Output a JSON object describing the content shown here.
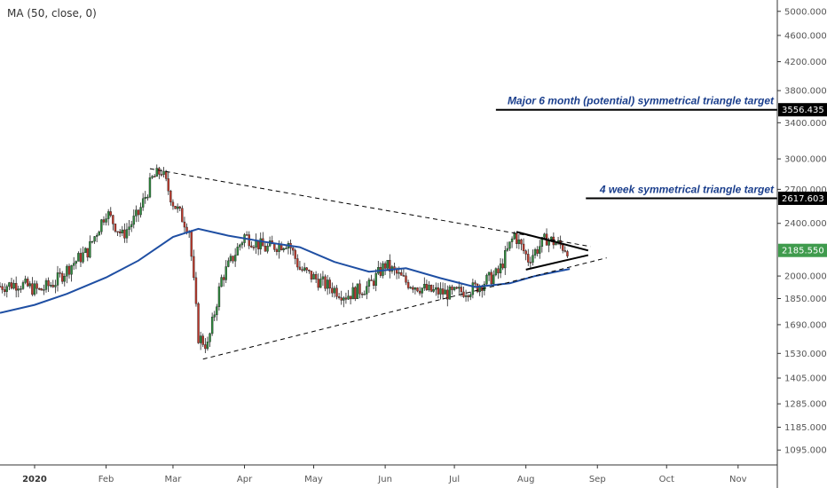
{
  "indicator_label": "MA (50, close, 0)",
  "colors": {
    "up": "#2e8b3d",
    "down": "#c0392b",
    "ma": "#1f4fa3",
    "annotation": "#1a3e8c",
    "price_badge": "#3f9b4d",
    "target_badge": "#000000"
  },
  "chart_data": {
    "type": "candlestick",
    "y_scale": "log",
    "ylim": [
      1040,
      5200
    ],
    "y_ticks": [
      "5000.000",
      "4600.000",
      "4200.000",
      "3800.000",
      "3400.000",
      "3000.000",
      "2700.000",
      "2400.000",
      "2000.000",
      "1850.000",
      "1690.000",
      "1530.000",
      "1405.000",
      "1285.000",
      "1185.000",
      "1095.000"
    ],
    "x_ticks": [
      {
        "label": "2020",
        "date": "2020-01-01",
        "bold": true
      },
      {
        "label": "Feb",
        "date": "2020-02-01"
      },
      {
        "label": "Mar",
        "date": "2020-03-01"
      },
      {
        "label": "Apr",
        "date": "2020-04-01"
      },
      {
        "label": "May",
        "date": "2020-05-01"
      },
      {
        "label": "Jun",
        "date": "2020-06-01"
      },
      {
        "label": "Jul",
        "date": "2020-07-01"
      },
      {
        "label": "Aug",
        "date": "2020-08-01"
      },
      {
        "label": "Sep",
        "date": "2020-09-01"
      },
      {
        "label": "Oct",
        "date": "2020-10-01"
      },
      {
        "label": "Nov",
        "date": "2020-11-01"
      }
    ],
    "xlim": [
      "2019-12-17",
      "2020-11-18"
    ],
    "price_close": [
      {
        "date": "2019-12-17",
        "value": 1930
      },
      {
        "date": "2019-12-25",
        "value": 1950
      },
      {
        "date": "2020-01-03",
        "value": 1900
      },
      {
        "date": "2020-01-10",
        "value": 1960
      },
      {
        "date": "2020-01-17",
        "value": 2080
      },
      {
        "date": "2020-01-24",
        "value": 2180
      },
      {
        "date": "2020-02-01",
        "value": 2500
      },
      {
        "date": "2020-02-08",
        "value": 2300
      },
      {
        "date": "2020-02-15",
        "value": 2480
      },
      {
        "date": "2020-02-21",
        "value": 2800
      },
      {
        "date": "2020-02-25",
        "value": 2880
      },
      {
        "date": "2020-03-01",
        "value": 2580
      },
      {
        "date": "2020-03-08",
        "value": 2350
      },
      {
        "date": "2020-03-12",
        "value": 1620
      },
      {
        "date": "2020-03-16",
        "value": 1570
      },
      {
        "date": "2020-03-22",
        "value": 1980
      },
      {
        "date": "2020-04-01",
        "value": 2300
      },
      {
        "date": "2020-04-10",
        "value": 2200
      },
      {
        "date": "2020-04-20",
        "value": 2250
      },
      {
        "date": "2020-04-25",
        "value": 2050
      },
      {
        "date": "2020-05-05",
        "value": 1950
      },
      {
        "date": "2020-05-15",
        "value": 1870
      },
      {
        "date": "2020-05-25",
        "value": 1930
      },
      {
        "date": "2020-06-01",
        "value": 2080
      },
      {
        "date": "2020-06-10",
        "value": 1960
      },
      {
        "date": "2020-06-20",
        "value": 1900
      },
      {
        "date": "2020-06-30",
        "value": 1880
      },
      {
        "date": "2020-07-10",
        "value": 1920
      },
      {
        "date": "2020-07-20",
        "value": 2020
      },
      {
        "date": "2020-07-27",
        "value": 2310
      },
      {
        "date": "2020-08-02",
        "value": 2120
      },
      {
        "date": "2020-08-10",
        "value": 2280
      },
      {
        "date": "2020-08-20",
        "value": 2185.55
      }
    ],
    "moving_average": [
      {
        "date": "2019-12-17",
        "value": 1760
      },
      {
        "date": "2020-01-01",
        "value": 1810
      },
      {
        "date": "2020-01-15",
        "value": 1880
      },
      {
        "date": "2020-02-01",
        "value": 1990
      },
      {
        "date": "2020-02-15",
        "value": 2110
      },
      {
        "date": "2020-03-01",
        "value": 2290
      },
      {
        "date": "2020-03-12",
        "value": 2355
      },
      {
        "date": "2020-03-25",
        "value": 2300
      },
      {
        "date": "2020-04-10",
        "value": 2250
      },
      {
        "date": "2020-04-25",
        "value": 2210
      },
      {
        "date": "2020-05-10",
        "value": 2100
      },
      {
        "date": "2020-05-25",
        "value": 2030
      },
      {
        "date": "2020-06-10",
        "value": 2055
      },
      {
        "date": "2020-06-25",
        "value": 1985
      },
      {
        "date": "2020-07-10",
        "value": 1925
      },
      {
        "date": "2020-07-25",
        "value": 1950
      },
      {
        "date": "2020-08-05",
        "value": 2000
      },
      {
        "date": "2020-08-20",
        "value": 2050
      }
    ],
    "trendlines": [
      {
        "style": "dashed",
        "from": {
          "date": "2020-02-20",
          "value": 2900
        },
        "to": {
          "date": "2020-08-29",
          "value": 2215
        }
      },
      {
        "style": "dashed",
        "from": {
          "date": "2020-03-14",
          "value": 1500
        },
        "to": {
          "date": "2020-09-05",
          "value": 2130
        }
      },
      {
        "style": "solid",
        "from": {
          "date": "2020-07-28",
          "value": 2330
        },
        "to": {
          "date": "2020-08-28",
          "value": 2185
        }
      },
      {
        "style": "solid",
        "from": {
          "date": "2020-08-01",
          "value": 2045
        },
        "to": {
          "date": "2020-08-28",
          "value": 2150
        }
      }
    ],
    "annotations": [
      {
        "text": "Major 6 month (potential) symmetrical triangle target",
        "value": 3556.435,
        "value_label": "3556.435",
        "line_start": "2020-07-19"
      },
      {
        "text": "4 week symmetrical triangle target",
        "value": 2617.603,
        "value_label": "2617.603",
        "line_start": "2020-08-27"
      }
    ],
    "current_price": {
      "value": 2185.55,
      "label": "2185.550"
    }
  }
}
